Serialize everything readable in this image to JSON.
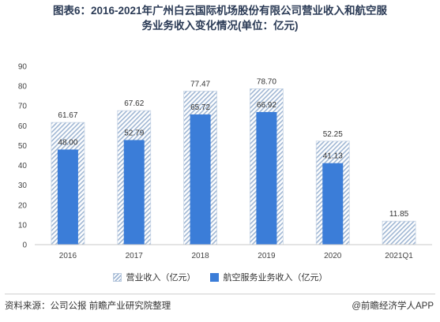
{
  "title": {
    "line1": "图表6：2016-2021年广州白云国际机场股份有限公司营业收入和航空服",
    "line2": "务业务收入变化情况(单位：亿元)"
  },
  "chart_data": {
    "type": "bar",
    "categories": [
      "2016",
      "2017",
      "2018",
      "2019",
      "2020",
      "2021Q1"
    ],
    "series": [
      {
        "name": "营业收入（亿元）",
        "values": [
          61.67,
          67.62,
          77.47,
          78.7,
          52.25,
          11.85
        ],
        "color": "#9fb6d3",
        "pattern": "hatch"
      },
      {
        "name": "航空服务业务收入（亿元）",
        "values": [
          48.0,
          52.79,
          65.72,
          66.92,
          41.13,
          null
        ],
        "color": "#3b7dd8",
        "pattern": "solid"
      }
    ],
    "value_labels": [
      [
        "61.67",
        "67.62",
        "77.47",
        "78.70",
        "52.25",
        "11.85"
      ],
      [
        "48.00",
        "52.79",
        "65.72",
        "66.92",
        "41.13",
        ""
      ]
    ],
    "y_ticks": [
      "0",
      "10",
      "20",
      "30",
      "40",
      "50",
      "60",
      "70",
      "80",
      "90"
    ],
    "ylim": [
      0,
      90
    ],
    "grid": false,
    "legend_position": "bottom"
  },
  "legend": {
    "item1": "营业收入（亿元）",
    "item2": "航空服务业务收入（亿元）"
  },
  "footer": {
    "source": "资料来源：公司公报 前瞻产业研究院整理",
    "brand": "@前瞻经济学人APP"
  }
}
